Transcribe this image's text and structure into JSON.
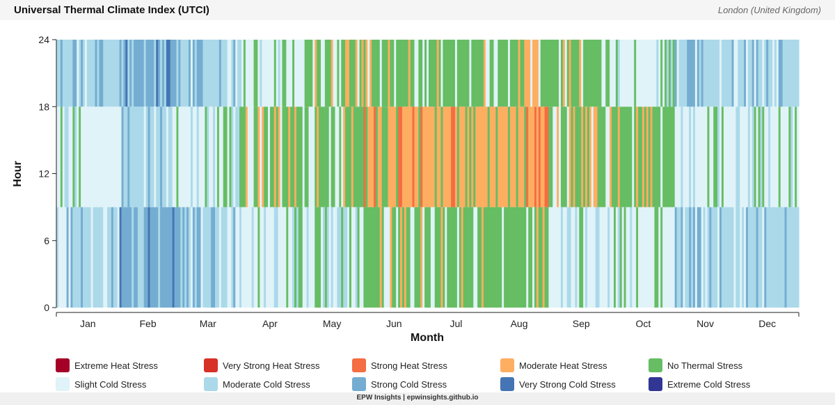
{
  "header": {
    "title": "Universal Thermal Climate Index (UTCI)",
    "location": "London (United Kingdom)"
  },
  "footer": {
    "text": "EPW Insights | epwinsights.github.io"
  },
  "chart_data": {
    "type": "heatmap",
    "xlabel": "Month",
    "ylabel": "Hour",
    "x_ticks": [
      "Jan",
      "Feb",
      "Mar",
      "Apr",
      "May",
      "Jun",
      "Jul",
      "Aug",
      "Sep",
      "Oct",
      "Nov",
      "Dec"
    ],
    "y_ticks": [
      0,
      6,
      12,
      18,
      24
    ],
    "ylim": [
      0,
      24
    ],
    "x_range_days": [
      1,
      365
    ],
    "categories": [
      {
        "name": "Extreme Heat Stress",
        "color": "#a50026"
      },
      {
        "name": "Very Strong Heat Stress",
        "color": "#d73027"
      },
      {
        "name": "Strong Heat Stress",
        "color": "#f46d43"
      },
      {
        "name": "Moderate Heat Stress",
        "color": "#fdae61"
      },
      {
        "name": "No Thermal Stress",
        "color": "#66bd63"
      },
      {
        "name": "Slight Cold Stress",
        "color": "#e0f3f8"
      },
      {
        "name": "Moderate Cold Stress",
        "color": "#abd9e9"
      },
      {
        "name": "Strong Cold Stress",
        "color": "#74add1"
      },
      {
        "name": "Very Strong Cold Stress",
        "color": "#4575b4"
      },
      {
        "name": "Extreme Cold Stress",
        "color": "#313695"
      }
    ],
    "monthly_typical_by_hour_band": [
      {
        "month": "Jan",
        "night": "Moderate Cold Stress",
        "midday": "Slight Cold Stress",
        "evening": "Moderate Cold Stress"
      },
      {
        "month": "Feb",
        "night": "Strong Cold Stress",
        "midday": "Moderate Cold Stress",
        "evening": "Strong Cold Stress"
      },
      {
        "month": "Mar",
        "night": "Moderate Cold Stress",
        "midday": "Slight Cold Stress",
        "evening": "Moderate Cold Stress"
      },
      {
        "month": "Apr",
        "night": "Slight Cold Stress",
        "midday": "No Thermal Stress",
        "evening": "Slight Cold Stress"
      },
      {
        "month": "May",
        "night": "Slight Cold Stress",
        "midday": "No Thermal Stress",
        "evening": "No Thermal Stress"
      },
      {
        "month": "Jun",
        "night": "No Thermal Stress",
        "midday": "Moderate Heat Stress",
        "evening": "No Thermal Stress"
      },
      {
        "month": "Jul",
        "night": "No Thermal Stress",
        "midday": "Moderate Heat Stress",
        "evening": "No Thermal Stress"
      },
      {
        "month": "Aug",
        "night": "No Thermal Stress",
        "midday": "Moderate Heat Stress",
        "evening": "No Thermal Stress"
      },
      {
        "month": "Sep",
        "night": "Slight Cold Stress",
        "midday": "No Thermal Stress",
        "evening": "No Thermal Stress"
      },
      {
        "month": "Oct",
        "night": "Slight Cold Stress",
        "midday": "No Thermal Stress",
        "evening": "Slight Cold Stress"
      },
      {
        "month": "Nov",
        "night": "Moderate Cold Stress",
        "midday": "Slight Cold Stress",
        "evening": "Moderate Cold Stress"
      },
      {
        "month": "Dec",
        "night": "Moderate Cold Stress",
        "midday": "Slight Cold Stress",
        "evening": "Moderate Cold Stress"
      }
    ],
    "peak_observed": "Strong Heat Stress",
    "grid": false,
    "legend_position": "bottom"
  }
}
